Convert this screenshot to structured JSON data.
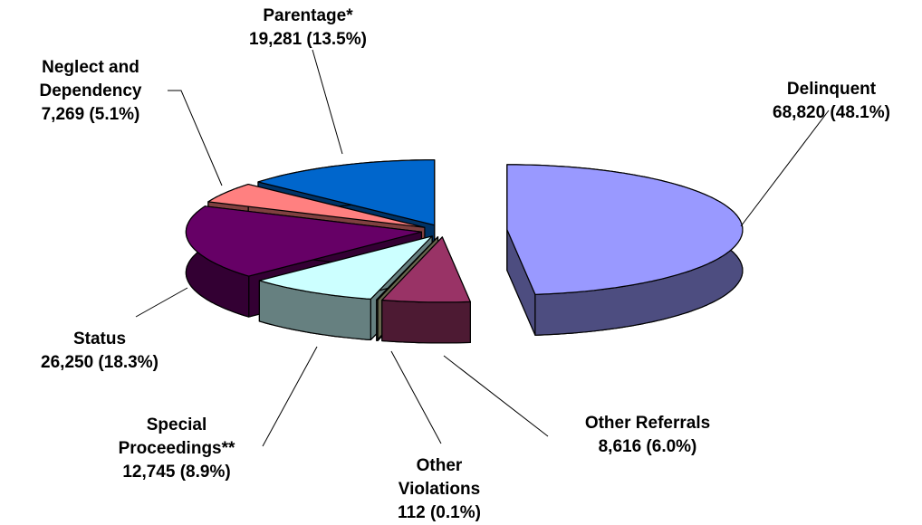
{
  "chart_data": {
    "type": "pie",
    "categories": [
      "Delinquent",
      "Other Referrals",
      "Other Violations",
      "Special Proceedings**",
      "Status",
      "Neglect and Dependency",
      "Parentage*"
    ],
    "values": [
      68820,
      8616,
      112,
      12745,
      26250,
      7269,
      19281
    ],
    "value_labels": [
      "68,820 (48.1%)",
      "8,616 (6.0%)",
      "112 (0.1%)",
      "12,745 (8.9%)",
      "26,250 (18.3%)",
      "7,269 (5.1%)",
      "19,281 (13.5%)"
    ],
    "colors": [
      "#9999ff",
      "#993366",
      "#cccc99",
      "#ccffff",
      "#660066",
      "#ff8080",
      "#0066cc"
    ]
  }
}
